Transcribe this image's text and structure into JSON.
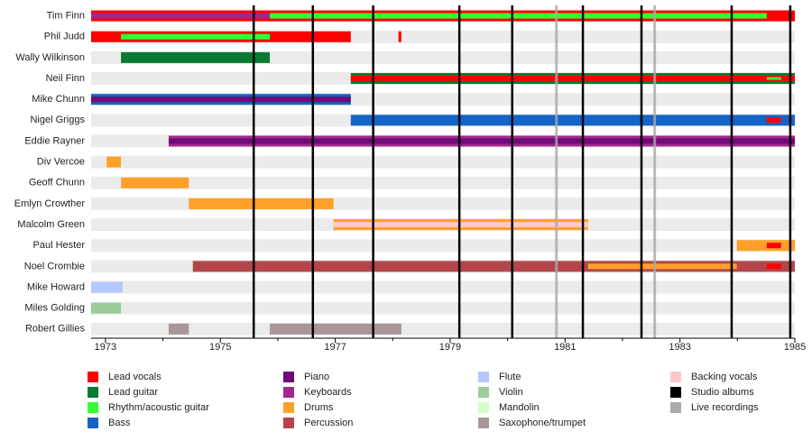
{
  "chart_data": {
    "type": "timeline",
    "xlim": [
      1972.75,
      1985
    ],
    "xticks": [
      1973,
      1975,
      1977,
      1979,
      1981,
      1983,
      1985
    ],
    "minor_xticks": [
      1974,
      1976,
      1978,
      1980,
      1982,
      1984
    ],
    "members": [
      {
        "name": "Tim Finn",
        "segments": [
          {
            "start": 1972.75,
            "end": 1985,
            "color": "#ff0000"
          },
          {
            "start": 1972.75,
            "end": 1975.86,
            "color": "#a0288c"
          },
          {
            "start": 1975.86,
            "end": 1984.51,
            "color": "#33ff33"
          }
        ]
      },
      {
        "name": "Phil Judd",
        "segments": [
          {
            "start": 1972.75,
            "end": 1977.27,
            "color": "#ff0000"
          },
          {
            "start": 1973.27,
            "end": 1975.86,
            "color": "#33ff33"
          },
          {
            "start": 1978.1,
            "end": 1978.15,
            "color": "#ff0000"
          }
        ]
      },
      {
        "name": "Wally Wilkinson",
        "segments": [
          {
            "start": 1973.27,
            "end": 1975.86,
            "color": "#0a7a32"
          }
        ]
      },
      {
        "name": "Neil Finn",
        "segments": [
          {
            "start": 1977.27,
            "end": 1985,
            "color": "#0a7a32"
          },
          {
            "start": 1977.27,
            "end": 1985,
            "color": "#ff0000"
          },
          {
            "start": 1984.51,
            "end": 1984.76,
            "color": "#33ff33"
          }
        ]
      },
      {
        "name": "Mike Chunn",
        "segments": [
          {
            "start": 1972.75,
            "end": 1977.27,
            "color": "#1464c8"
          },
          {
            "start": 1972.75,
            "end": 1977.27,
            "color": "#700a78"
          }
        ]
      },
      {
        "name": "Nigel Griggs",
        "segments": [
          {
            "start": 1977.27,
            "end": 1985,
            "color": "#1464c8"
          },
          {
            "start": 1984.51,
            "end": 1984.76,
            "color": "#ff0000"
          }
        ]
      },
      {
        "name": "Eddie Rayner",
        "segments": [
          {
            "start": 1974.1,
            "end": 1985,
            "color": "#a0288c"
          },
          {
            "start": 1974.1,
            "end": 1985,
            "color": "#700a78"
          }
        ]
      },
      {
        "name": "Div Vercoe",
        "segments": [
          {
            "start": 1973.02,
            "end": 1973.27,
            "color": "#ffa028"
          }
        ]
      },
      {
        "name": "Geoff Chunn",
        "segments": [
          {
            "start": 1973.27,
            "end": 1974.45,
            "color": "#ffa028"
          }
        ]
      },
      {
        "name": "Emlyn Crowther",
        "segments": [
          {
            "start": 1974.45,
            "end": 1976.97,
            "color": "#ffa028"
          }
        ]
      },
      {
        "name": "Malcolm Green",
        "segments": [
          {
            "start": 1976.97,
            "end": 1981.4,
            "color": "#ffa028"
          },
          {
            "start": 1976.97,
            "end": 1981.4,
            "color": "#ffc8c8"
          }
        ]
      },
      {
        "name": "Paul Hester",
        "segments": [
          {
            "start": 1983.99,
            "end": 1985,
            "color": "#ffa028"
          },
          {
            "start": 1984.51,
            "end": 1984.76,
            "color": "#ff0000"
          }
        ]
      },
      {
        "name": "Noel Crombie",
        "segments": [
          {
            "start": 1974.52,
            "end": 1985,
            "color": "#b4464b"
          },
          {
            "start": 1981.4,
            "end": 1983.99,
            "color": "#ffa028"
          },
          {
            "start": 1984.51,
            "end": 1984.76,
            "color": "#ff0000"
          }
        ]
      },
      {
        "name": "Mike Howard",
        "segments": [
          {
            "start": 1972.75,
            "end": 1973.3,
            "color": "#b4c8ff"
          }
        ]
      },
      {
        "name": "Miles Golding",
        "segments": [
          {
            "start": 1972.75,
            "end": 1973.27,
            "color": "#9bcd9b"
          }
        ]
      },
      {
        "name": "Robert Gillies",
        "segments": [
          {
            "start": 1974.1,
            "end": 1974.45,
            "color": "#aa9696"
          },
          {
            "start": 1975.86,
            "end": 1978.15,
            "color": "#aa9696"
          }
        ]
      }
    ],
    "roles": [
      {
        "name": "Lead vocals",
        "color": "#ff0000"
      },
      {
        "name": "Lead guitar",
        "color": "#0a7a32"
      },
      {
        "name": "Rhythm/acoustic guitar",
        "color": "#33ff33"
      },
      {
        "name": "Bass",
        "color": "#1464c8"
      },
      {
        "name": "Piano",
        "color": "#700a78"
      },
      {
        "name": "Keyboards",
        "color": "#a0288c"
      },
      {
        "name": "Drums",
        "color": "#ffa028"
      },
      {
        "name": "Percussion",
        "color": "#b4464b"
      },
      {
        "name": "Flute",
        "color": "#b4c8ff"
      },
      {
        "name": "Violin",
        "color": "#9bcd9b"
      },
      {
        "name": "Mandolin",
        "color": "#d2ffc8"
      },
      {
        "name": "Saxophone/trumpet",
        "color": "#aa9696"
      },
      {
        "name": "Backing vocals",
        "color": "#ffc8c8"
      }
    ],
    "markers": [
      {
        "name": "Studio albums",
        "color": "#000000",
        "values": [
          1975.58,
          1976.61,
          1977.66,
          1979.16,
          1980.08,
          1981.31,
          1982.33,
          1983.9,
          1984.92
        ]
      },
      {
        "name": "Live recordings",
        "color": "#aaaaaa",
        "values": [
          1980.85,
          1982.56
        ]
      }
    ]
  }
}
